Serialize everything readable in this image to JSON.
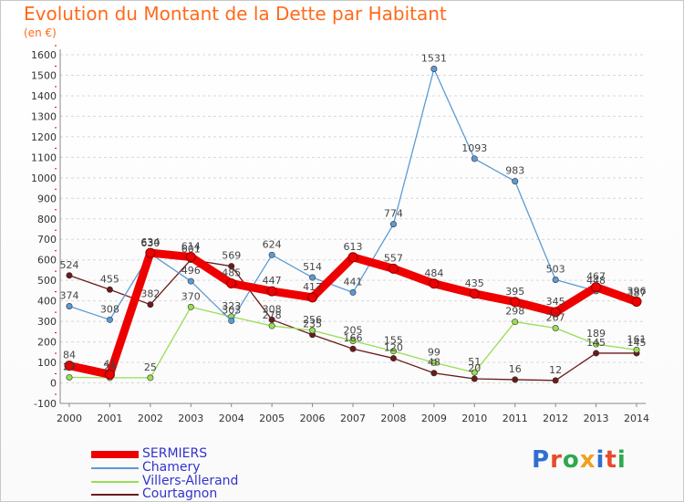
{
  "chart_data": {
    "type": "line",
    "title": "Evolution du Montant de la Dette par Habitant",
    "subtitle": "(en €)",
    "x": [
      "2000",
      "2001",
      "2002",
      "2003",
      "2004",
      "2005",
      "2006",
      "2007",
      "2008",
      "2009",
      "2010",
      "2011",
      "2012",
      "2013",
      "2014"
    ],
    "ylim": [
      -100,
      1600
    ],
    "yticks": [
      "-100",
      "0",
      "100",
      "200",
      "300",
      "400",
      "500",
      "600",
      "700",
      "800",
      "900",
      "1000",
      "1100",
      "1200",
      "1300",
      "1400",
      "1500",
      "1600"
    ],
    "grid": true,
    "legend_position": "bottom-left",
    "series": [
      {
        "name": "SERMIERS",
        "color": "#ee0000",
        "values": [
          84,
          41,
          634,
          614,
          485,
          447,
          417,
          613,
          557,
          484,
          435,
          395,
          345,
          467,
          396
        ]
      },
      {
        "name": "Chamery",
        "color": "#5b9bd5",
        "values": [
          374,
          308,
          630,
          496,
          303,
          624,
          514,
          441,
          774,
          1531,
          1093,
          983,
          503,
          448,
          387
        ]
      },
      {
        "name": "Villers-Allerand",
        "color": "#99dd55",
        "values": [
          27,
          25,
          25,
          370,
          323,
          278,
          256,
          205,
          155,
          99,
          51,
          298,
          267,
          189,
          161
        ]
      },
      {
        "name": "Courtagnon",
        "color": "#6b1a1a",
        "values": [
          524,
          455,
          382,
          601,
          569,
          308,
          235,
          166,
          120,
          48,
          20,
          16,
          12,
          145,
          145
        ]
      }
    ]
  },
  "logo": {
    "text": "Proxiti"
  }
}
